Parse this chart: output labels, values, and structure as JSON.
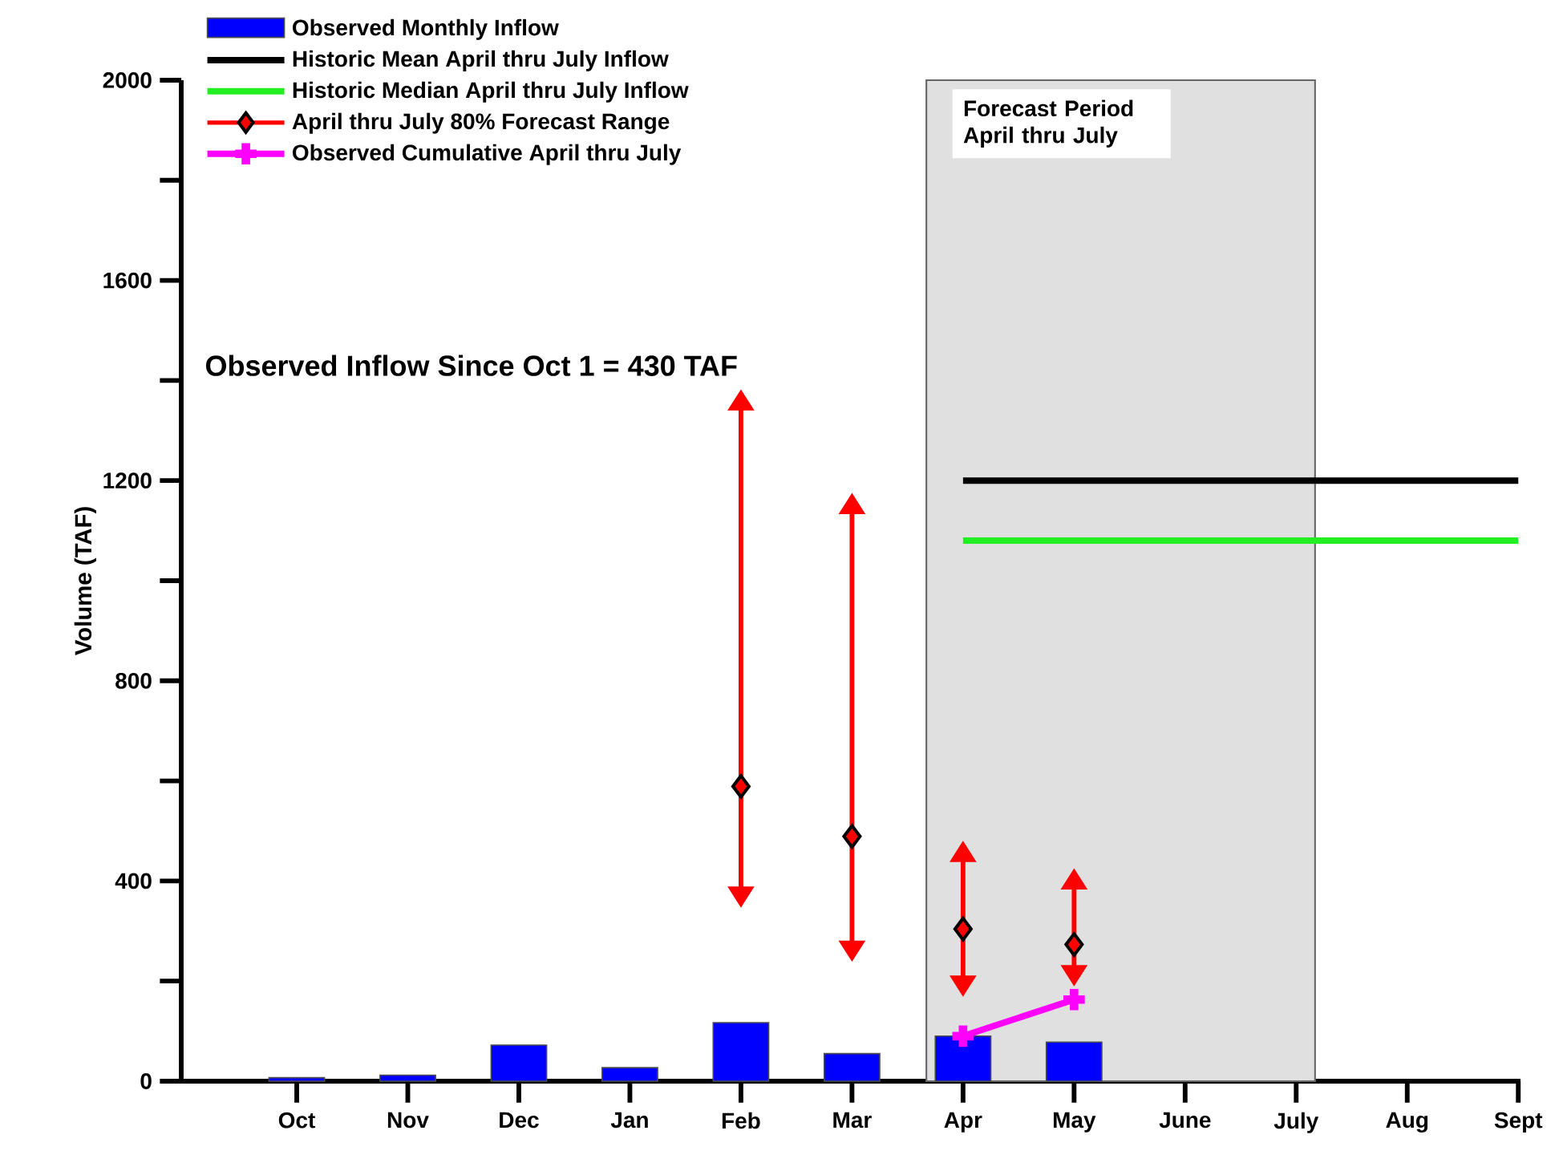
{
  "chart_data": {
    "type": "bar",
    "ylabel": "Volume (TAF)",
    "categories": [
      "Oct",
      "Nov",
      "Dec",
      "Jan",
      "Feb",
      "Mar",
      "Apr",
      "May",
      "June",
      "July",
      "Aug",
      "Sept"
    ],
    "series": [
      {
        "name": "Observed Monthly Inflow",
        "type": "bar",
        "color": "#0000ff",
        "values": [
          7,
          12,
          72,
          27,
          117,
          55,
          90,
          78,
          null,
          null,
          null,
          null
        ]
      },
      {
        "name": "Historic Mean April thru July Inflow",
        "type": "line",
        "color": "#000000",
        "values": [
          null,
          null,
          null,
          null,
          null,
          null,
          1200,
          1200,
          1200,
          1200,
          1200,
          1200
        ]
      },
      {
        "name": "Historic Median April thru July Inflow",
        "type": "line",
        "color": "#22ee22",
        "values": [
          null,
          null,
          null,
          null,
          null,
          null,
          1080,
          1080,
          1080,
          1080,
          1080,
          1080
        ]
      },
      {
        "name": "April thru July 80% Forecast Range",
        "type": "scatter",
        "marker": "diamond",
        "color": "#ff0000",
        "values": [
          null,
          null,
          null,
          null,
          589,
          489,
          304,
          273,
          null,
          null,
          null,
          null
        ],
        "errors": [
          null,
          null,
          null,
          null,
          [
            389,
            1340
          ],
          [
            281,
            1133
          ],
          [
            211,
            438
          ],
          [
            232,
            383
          ],
          null,
          null,
          null,
          null
        ]
      },
      {
        "name": "Observed Cumulative April thru July",
        "type": "line",
        "marker": "cross",
        "color": "#ff00ff",
        "values": [
          null,
          null,
          null,
          null,
          null,
          null,
          90,
          163,
          null,
          null,
          null,
          null
        ]
      }
    ],
    "ylim": [
      0,
      2000
    ],
    "yticks": [
      0,
      {
        "value": 200,
        "label": null
      },
      400,
      {
        "value": 600,
        "label": null
      },
      800,
      {
        "value": 1000,
        "label": null
      },
      1200,
      {
        "value": 1400,
        "label": null
      },
      1600,
      {
        "value": 1800,
        "label": null
      },
      2000
    ],
    "bands": [
      {
        "axis": "x",
        "from": "Apr",
        "to": "July",
        "label": "Forecast Period April thru July",
        "color": "#e0e0e0"
      }
    ],
    "annotations": [
      "Observed Inflow Since Oct 1 = 430 TAF"
    ],
    "legend": "top left"
  }
}
